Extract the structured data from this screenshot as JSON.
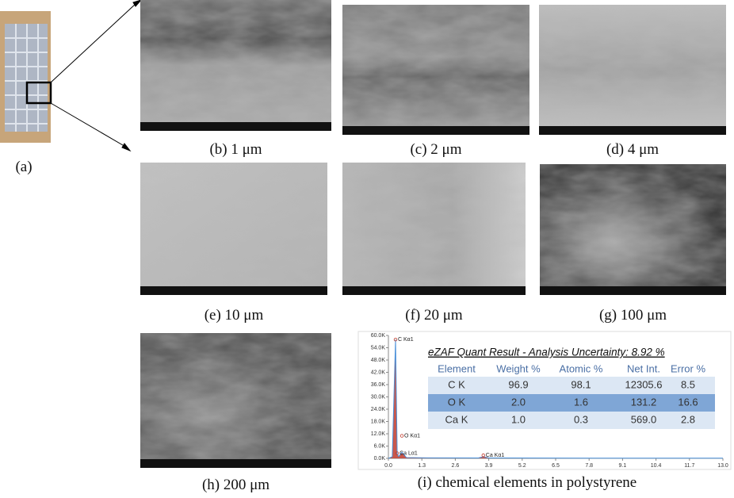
{
  "panel_a": {
    "label": "(a)"
  },
  "panels": [
    {
      "caption": "(b) 1 μm"
    },
    {
      "caption": "(c) 2 μm"
    },
    {
      "caption": "(d) 4 μm"
    },
    {
      "caption": "(e) 10 μm"
    },
    {
      "caption": "(f) 20 μm"
    },
    {
      "caption": "(g) 100 μm"
    },
    {
      "caption": "(h) 200 μm"
    }
  ],
  "spectrum_caption": "(i) chemical elements in polystyrene",
  "chart_data": {
    "type": "line",
    "x": [
      0,
      0.15,
      0.277,
      0.341,
      0.4,
      0.525,
      0.7,
      1.5,
      3.5,
      3.69,
      3.9,
      8,
      13
    ],
    "series": [
      {
        "color": "#4a90d9",
        "fill": "#c0392b",
        "values": [
          0,
          800,
          58000,
          2000,
          900,
          3000,
          400,
          250,
          200,
          800,
          200,
          120,
          80
        ]
      }
    ],
    "xlim": [
      0,
      13
    ],
    "ylim": [
      0,
      60000
    ],
    "xticks": [
      {
        "value": 0,
        "label": "0.0"
      },
      1.3,
      2.6,
      3.9,
      5.2,
      6.5,
      7.8,
      9.1,
      10.4,
      11.7,
      {
        "value": 13,
        "label": "13.0"
      }
    ],
    "yticks": [
      {
        "value": 0,
        "label": "0.0K"
      },
      {
        "value": 6000,
        "label": "6.0K"
      },
      {
        "value": 12000,
        "label": "12.0K"
      },
      {
        "value": 18000,
        "label": "18.0K"
      },
      {
        "value": 24000,
        "label": "24.0K"
      },
      {
        "value": 30000,
        "label": "30.0K"
      },
      {
        "value": 36000,
        "label": "36.0K"
      },
      {
        "value": 42000,
        "label": "42.0K"
      },
      {
        "value": 48000,
        "label": "48.0K"
      },
      {
        "value": 54000,
        "label": "54.0K"
      },
      {
        "value": 60000,
        "label": "60.0K"
      }
    ],
    "annotations": [
      {
        "text": "C Kα1",
        "x": 0.277,
        "y": 58000
      },
      {
        "text": "O Kα1",
        "x": 0.525,
        "y": 11000
      },
      {
        "text": "Ca Lα1",
        "x": 0.341,
        "y": 2500
      },
      {
        "text": "Ca Kα1",
        "x": 3.69,
        "y": 1500
      }
    ]
  },
  "table": {
    "title": "eZAF Quant Result - Analysis Uncertainty: 8.92 %",
    "columns": [
      "Element",
      "Weight %",
      "Atomic %",
      "Net Int.",
      "Error %"
    ],
    "rows": [
      [
        "C K",
        "96.9",
        "98.1",
        "12305.6",
        "8.5"
      ],
      [
        "O K",
        "2.0",
        "1.6",
        "131.2",
        "16.6"
      ],
      [
        "Ca K",
        "1.0",
        "0.3",
        "569.0",
        "2.8"
      ]
    ]
  }
}
